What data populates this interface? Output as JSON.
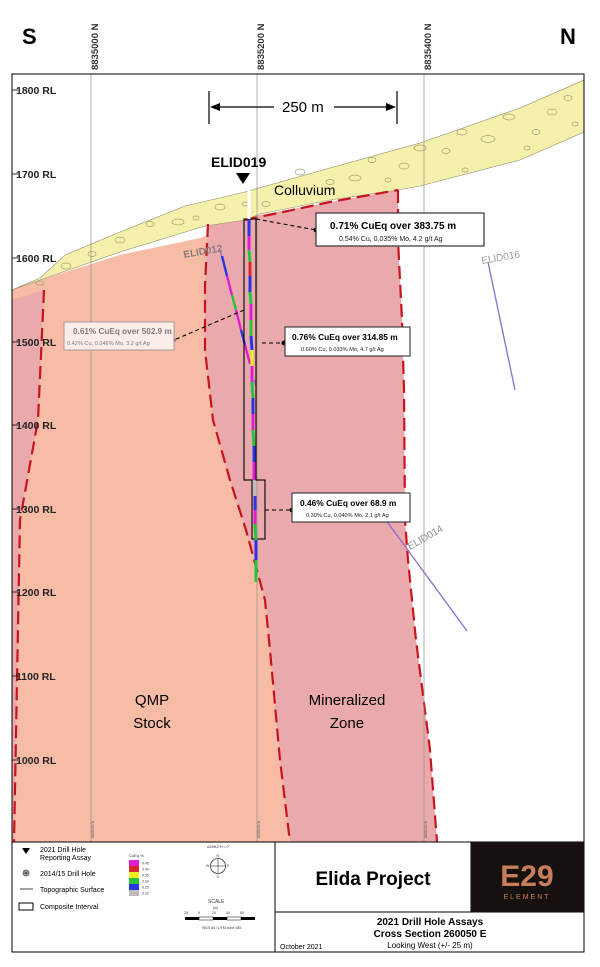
{
  "compass": {
    "left": "S",
    "right": "N"
  },
  "northings": [
    "8835000 N",
    "8835200 N",
    "8835400 N"
  ],
  "bottom_northings": [
    "8835000 N",
    "8835200 N",
    "8835400 N"
  ],
  "elevations": [
    "1800 RL",
    "1700 RL",
    "1600 RL",
    "1500 RL",
    "1400 RL",
    "1300 RL",
    "1200 RL",
    "1100 RL",
    "1000 RL"
  ],
  "scale_bar": {
    "label": "250 m"
  },
  "units": {
    "colluvium": "Colluvium",
    "qmp_line1": "QMP",
    "qmp_line2": "Stock",
    "mz_line1": "Mineralized",
    "mz_line2": "Zone"
  },
  "drill_holes": {
    "main": "ELID019",
    "elid012": "ELID012",
    "elid016": "ELID016",
    "elid014": "ELID014"
  },
  "callouts": [
    {
      "title": "0.71% CuEq  over 383.75 m",
      "detail": "0.54% Cu, 0.035% Mo, 4.2 g/t Ag"
    },
    {
      "title": "0.61% CuEq  over 502.9 m",
      "detail": "0.42% Cu, 0.046% Mo, 3.2 g/t Ag"
    },
    {
      "title": "0.76% CuEq  over 314.85 m",
      "detail": "0.60% Cu, 0.033% Mo, 4.7 g/t Ag"
    },
    {
      "title": "0.46% CuEq  over 68.9 m",
      "detail": "0.30% Cu, 0.040% Mo, 2.1 g/t Ag"
    }
  ],
  "legend": {
    "items": [
      "2021 Drill Hole Reporting Assay",
      "2014/15 Drill Hole",
      "Topographic Surface",
      "Composite Interval"
    ],
    "color_scale_title": "CuEq %",
    "color_scale": [
      {
        "label": "0.45",
        "color": "#e21dd1"
      },
      {
        "label": "0.40",
        "color": "#d6262e"
      },
      {
        "label": "0.35",
        "color": "#f0ee20"
      },
      {
        "label": "0.30",
        "color": "#26c33b"
      },
      {
        "label": "0.25",
        "color": "#2a35e6"
      },
      {
        "label": "0.20",
        "color": "#bcbcbc"
      }
    ],
    "azimuth_label": "AZIMUTH = 0°",
    "compass_letters": {
      "n": "N",
      "w": "W",
      "e": "E",
      "s": "S"
    },
    "scale_title": "SCALE",
    "scale_unit": "(m)",
    "scale_ticks": [
      "20",
      "0",
      "20",
      "40",
      "60"
    ],
    "datum": "WGS 84 / UTM zone 18S",
    "date": "October 2021"
  },
  "title_block": {
    "project": "Elida Project",
    "line1": "2021 Drill Hole Assays",
    "line2": "Cross Section 260050 E",
    "line3": "Looking West (+/- 25 m)"
  },
  "logo": {
    "main": "E29",
    "sub": "ELEMENT"
  },
  "colors": {
    "qmp": "#f7bca5",
    "mineralized": "#eaa9ad",
    "colluvium": "#f6f0ad",
    "contact": "#c8141e",
    "logo_bg": "#16110e",
    "logo_accent": "#c77e59"
  }
}
